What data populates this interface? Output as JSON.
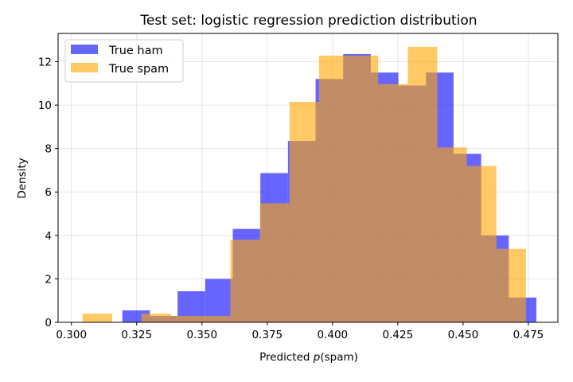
{
  "chart_data": {
    "type": "bar",
    "subtype": "histogram",
    "title": "Test set: logistic regression prediction distribution",
    "xlabel": "Predicted p(spam)",
    "xlabel_parts": {
      "prefix": "Predicted ",
      "italic": "p",
      "suffix": "(spam)"
    },
    "ylabel": "Density",
    "xlim": [
      0.2949,
      0.4863
    ],
    "ylim": [
      0,
      13.3
    ],
    "xticks": [
      0.3,
      0.325,
      0.35,
      0.375,
      0.4,
      0.425,
      0.45,
      0.475
    ],
    "xtick_labels": [
      "0.300",
      "0.325",
      "0.350",
      "0.375",
      "0.400",
      "0.425",
      "0.450",
      "0.475"
    ],
    "yticks": [
      0,
      2,
      4,
      6,
      8,
      10,
      12
    ],
    "ytick_labels": [
      "0",
      "2",
      "4",
      "6",
      "8",
      "10",
      "12"
    ],
    "grid": true,
    "legend_position": "upper left",
    "series": [
      {
        "name": "True ham",
        "color": "#0000ff",
        "alpha": 0.6,
        "bin_start": 0.31951,
        "bin_width": 0.01057,
        "values": [
          0.55,
          0.29,
          1.43,
          2.0,
          4.3,
          6.87,
          8.35,
          11.2,
          12.35,
          11.5,
          10.9,
          11.5,
          7.76,
          4.0,
          1.14
        ]
      },
      {
        "name": "True spam",
        "color": "#ffa500",
        "alpha": 0.6,
        "bin_start": 0.30427,
        "bin_width": 0.01132,
        "values": [
          0.4,
          0.0,
          0.4,
          0.29,
          0.29,
          3.8,
          5.48,
          10.15,
          12.28,
          12.28,
          10.97,
          12.68,
          8.05,
          7.2,
          3.38
        ]
      }
    ]
  }
}
